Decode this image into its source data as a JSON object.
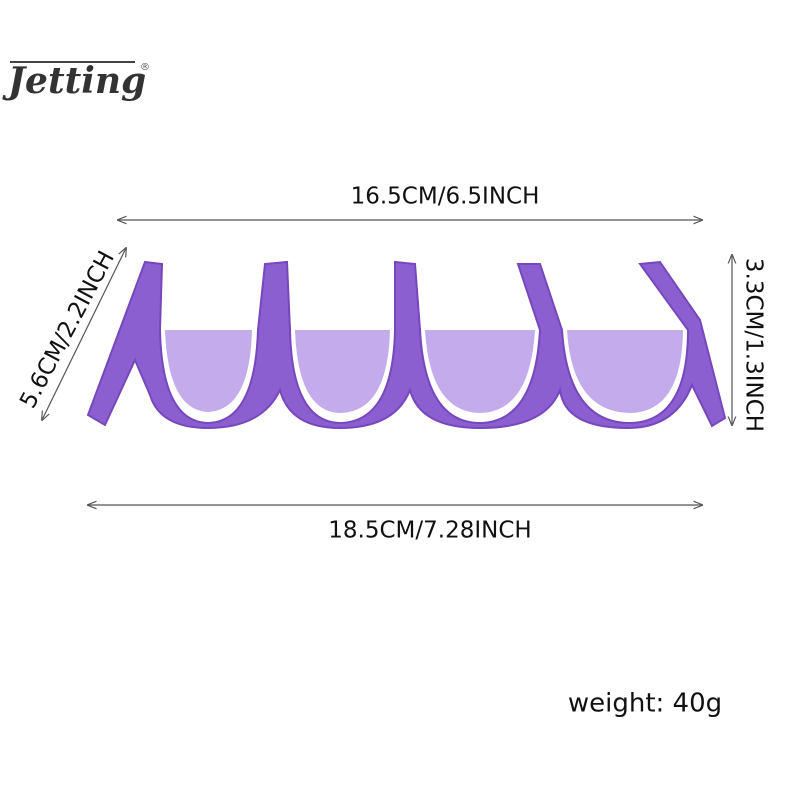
{
  "logo": {
    "text": "Jetting",
    "mark": "®"
  },
  "dimensions": {
    "top": "16.5CM/6.5INCH",
    "bottom": "18.5CM/7.28INCH",
    "left": "5.6CM/2.2INCH",
    "right": "3.3CM/1.3INCH"
  },
  "weight": "weight: 40g"
}
